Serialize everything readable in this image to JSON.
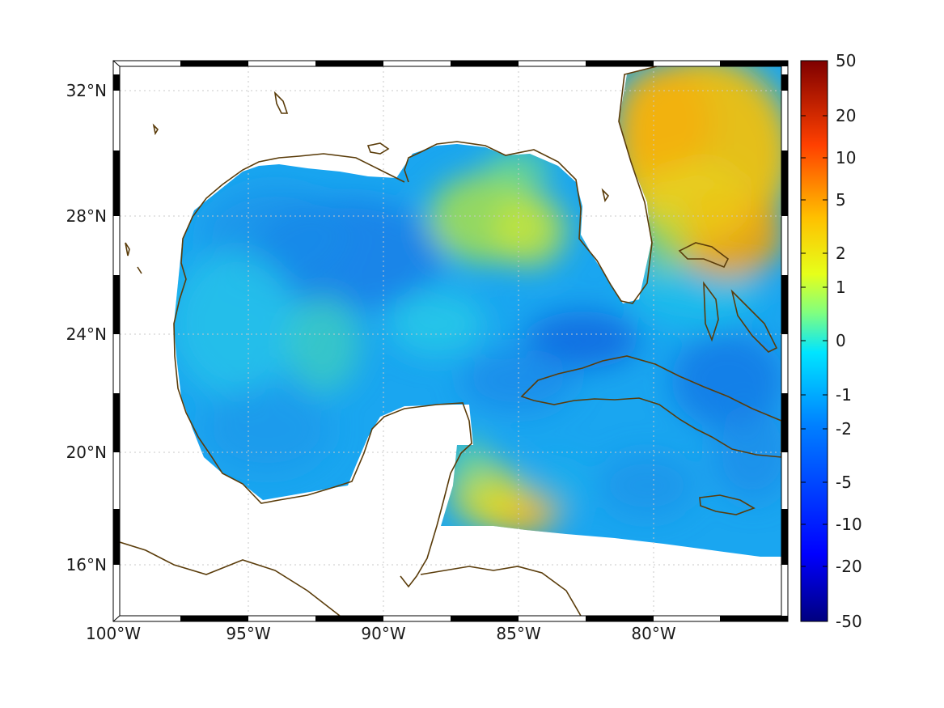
{
  "map": {
    "lon_labels": [
      "100°W",
      "95°W",
      "90°W",
      "85°W",
      "80°W"
    ],
    "lat_labels": [
      "32°N",
      "28°N",
      "24°N",
      "20°N",
      "16°N"
    ],
    "gridlines": true,
    "coastline_color": "#5a3c0a",
    "frame_style": "alternating black-white border"
  },
  "colorbar": {
    "tick_labels": [
      "50",
      "20",
      "10",
      "5",
      "2",
      "1",
      "0",
      "-1",
      "-2",
      "-5",
      "-10",
      "-20",
      "-50"
    ],
    "colormap": "jet",
    "scale": "nonlinear (symmetric log-like)"
  },
  "field_colors": {
    "gulf_interior": "#1aa6f0",
    "central_deep": "#1b7ae6",
    "west_florida_shelf": "#b8e33c",
    "atlantic_east_of_florida": "#f3b20a",
    "honduras_coast": "#f6c21a",
    "caribbean_south": "#1c8fe8",
    "near_zero": "#7fe3a0"
  }
}
